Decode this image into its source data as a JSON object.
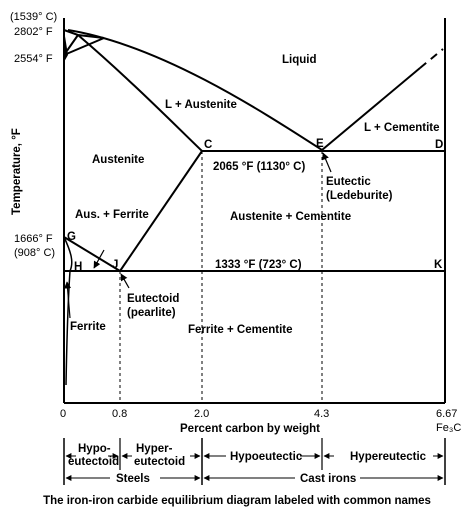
{
  "caption": "The iron-iron carbide equilibrium diagram labeled with common names",
  "axes": {
    "ylabel": "Temperature, °F",
    "xlabel": "Percent carbon by weight",
    "x_ticks": [
      "0",
      "0.8",
      "2.0",
      "4.3",
      "6.67"
    ],
    "x_end_label": "Fe₃C",
    "y_ticks": {
      "t1539c": "(1539° C)",
      "t2802": "2802° F",
      "t2554": "2554° F",
      "t1666": "1666° F",
      "t908c": "(908° C)"
    }
  },
  "regions": {
    "liquid": "Liquid",
    "l_austenite": "L + Austenite",
    "l_cementite": "L + Cementite",
    "austenite": "Austenite",
    "aus_ferrite": "Aus. + Ferrite",
    "austenite_cementite": "Austenite + Cementite",
    "ferrite": "Ferrite",
    "ferrite_cementite": "Ferrite + Cementite"
  },
  "points": {
    "C": "C",
    "D": "D",
    "E": "E",
    "G": "G",
    "H": "H",
    "J": "J",
    "K": "K"
  },
  "annotations": {
    "eutectic_temp": "2065 °F (1130° C)",
    "eutectoid_temp": "1333 °F (723° C)",
    "eutectic": "Eutectic",
    "ledeburite": "(Ledeburite)",
    "eutectoid": "Eutectoid",
    "pearlite": "(pearlite)"
  },
  "classification": {
    "steels": "Steels",
    "cast_irons": "Cast irons",
    "hypo_eutectoid": [
      "Hypo-",
      "eutectoid"
    ],
    "hyper_eutectoid": [
      "Hyper-",
      "eutectoid"
    ],
    "hypoeutectic": "Hypoeutectic",
    "hypereutectic": "Hypereutectic"
  }
}
